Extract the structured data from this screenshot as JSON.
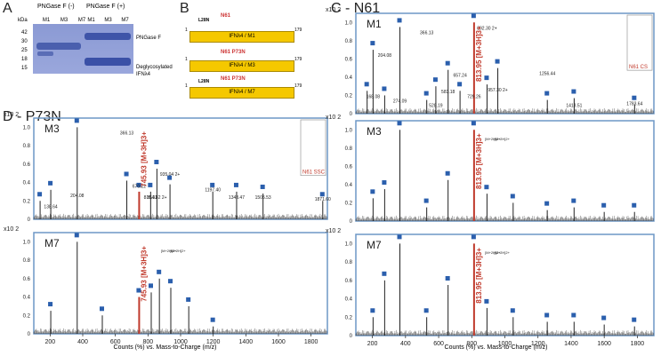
{
  "panel_a": {
    "label": "A",
    "col_header_minus": "PNGase F (-)",
    "col_header_plus": "PNGase F (+)",
    "kda": "kDa",
    "lanes_minus": [
      "M1",
      "M3",
      "M7"
    ],
    "lanes_plus": [
      "M1",
      "M3",
      "M7"
    ],
    "markers": [
      "42",
      "30",
      "25",
      "18",
      "15"
    ],
    "band_pngase": "PNGase F",
    "band_degly_1": "Deglycosylated",
    "band_degly_2": "IFNλ4"
  },
  "panel_b": {
    "label": "B",
    "constructs": [
      {
        "name": "IFNλ4 / M1",
        "sites": "N61",
        "l28": "L28N",
        "start": "1",
        "end": "179"
      },
      {
        "name": "IFNλ4 / M3",
        "sites": "N61 P73N",
        "l28": "",
        "start": "1",
        "end": "179"
      },
      {
        "name": "IFNλ4 / M7",
        "sites": "N61 P73N",
        "l28": "L28N",
        "start": "1",
        "end": "179"
      }
    ]
  },
  "panel_c": {
    "label": "C - N61"
  },
  "panel_d": {
    "label": "D - P73N"
  },
  "axis": {
    "xlabel": "Counts (%) vs. Mass-to-Charge (m/z)",
    "yscale": "x10 2",
    "yticks": [
      "1.0",
      "0.8",
      "0.6",
      "0.4",
      "0.2",
      "0"
    ]
  },
  "chart_data": [
    {
      "type": "line",
      "panel": "D",
      "title": "M3",
      "xlim": [
        100,
        1900
      ],
      "ylim": [
        0,
        1.1
      ],
      "x_ticks": [],
      "series": [
        {
          "name": "spectrum",
          "x": [
            138.64,
            204.08,
            366.13,
            670.22,
            745.93,
            816.31,
            854.82,
            935.04,
            1197.4,
            1343.47,
            1505.53,
            1871.6
          ],
          "values": [
            0.2,
            0.32,
            1.0,
            0.42,
            0.3,
            0.3,
            0.55,
            0.38,
            0.3,
            0.3,
            0.28,
            0.2
          ]
        }
      ],
      "peak_labels": [
        "138.64",
        "204.08",
        "366.13",
        "670.22",
        "816.31",
        "854.82 2+",
        "935.04 2+",
        "1197.40",
        "1343.47",
        "1505.53",
        "1871.60"
      ],
      "annotations": [
        "745.93 [M+3H]3+",
        "N61 SSC"
      ]
    },
    {
      "type": "line",
      "panel": "D",
      "title": "M7",
      "xlim": [
        100,
        1900
      ],
      "ylim": [
        0,
        1.1
      ],
      "x_ticks": [
        "200",
        "400",
        "600",
        "800",
        "1000",
        "1200",
        "1400",
        "1600",
        "1800"
      ],
      "series": [
        {
          "name": "spectrum",
          "x": [
            204,
            366,
            520,
            745.93,
            820,
            870,
            940,
            1050,
            1200
          ],
          "values": [
            0.25,
            1.0,
            0.2,
            0.4,
            0.45,
            0.6,
            0.5,
            0.3,
            0.08
          ]
        }
      ],
      "annotations": [
        "745.93 [M+3H]3+",
        "[M+2H]2+",
        "[M+2H]2+"
      ]
    },
    {
      "type": "line",
      "panel": "C",
      "title": "M1",
      "xlim": [
        100,
        1900
      ],
      "ylim": [
        0,
        1.1
      ],
      "x_ticks": [],
      "series": [
        {
          "name": "spectrum",
          "x": [
            168.08,
            204.08,
            274.09,
            366.13,
            528.19,
            583.18,
            657.24,
            729.26,
            813.95,
            892.3,
            957.3,
            1256.44,
            1418.51,
            1783.64
          ],
          "values": [
            0.25,
            0.7,
            0.2,
            0.95,
            0.15,
            0.3,
            0.48,
            0.25,
            1.0,
            0.32,
            0.5,
            0.15,
            0.17,
            0.1
          ]
        }
      ],
      "peak_labels": [
        "168.08",
        "204.08",
        "274.09",
        "366.13",
        "528.19",
        "583.18",
        "657.24",
        "729.26",
        "892.30 2+",
        "957.30 2+",
        "1256.44",
        "1418.51",
        "1783.64"
      ],
      "annotations": [
        "813.95 [M+3H]3+",
        "N61 CS"
      ]
    },
    {
      "type": "line",
      "panel": "C",
      "title": "M3",
      "xlim": [
        100,
        1900
      ],
      "ylim": [
        0,
        1.1
      ],
      "x_ticks": [],
      "series": [
        {
          "name": "spectrum",
          "x": [
            204,
            274,
            366,
            528,
            657,
            813.95,
            892,
            1050,
            1256,
            1418,
            1600,
            1783
          ],
          "values": [
            0.25,
            0.35,
            1.0,
            0.15,
            0.45,
            1.0,
            0.3,
            0.2,
            0.12,
            0.15,
            0.1,
            0.1
          ]
        }
      ],
      "annotations": [
        "813.95 [M+3H]3+",
        "[M+2H]2+",
        "[M+2H]2+"
      ]
    },
    {
      "type": "line",
      "panel": "C",
      "title": "M7",
      "xlim": [
        100,
        1900
      ],
      "ylim": [
        0,
        1.1
      ],
      "x_ticks": [
        "200",
        "400",
        "600",
        "800",
        "1000",
        "1200",
        "1400",
        "1600",
        "1800"
      ],
      "series": [
        {
          "name": "spectrum",
          "x": [
            204,
            274,
            366,
            528,
            657,
            813.95,
            892,
            1050,
            1256,
            1418,
            1600,
            1783
          ],
          "values": [
            0.2,
            0.6,
            1.0,
            0.2,
            0.55,
            1.0,
            0.3,
            0.2,
            0.15,
            0.15,
            0.12,
            0.1
          ]
        }
      ],
      "annotations": [
        "813.95 [M+3H]3+",
        "[M+2H]2+",
        "[M+2H]2+"
      ]
    }
  ]
}
